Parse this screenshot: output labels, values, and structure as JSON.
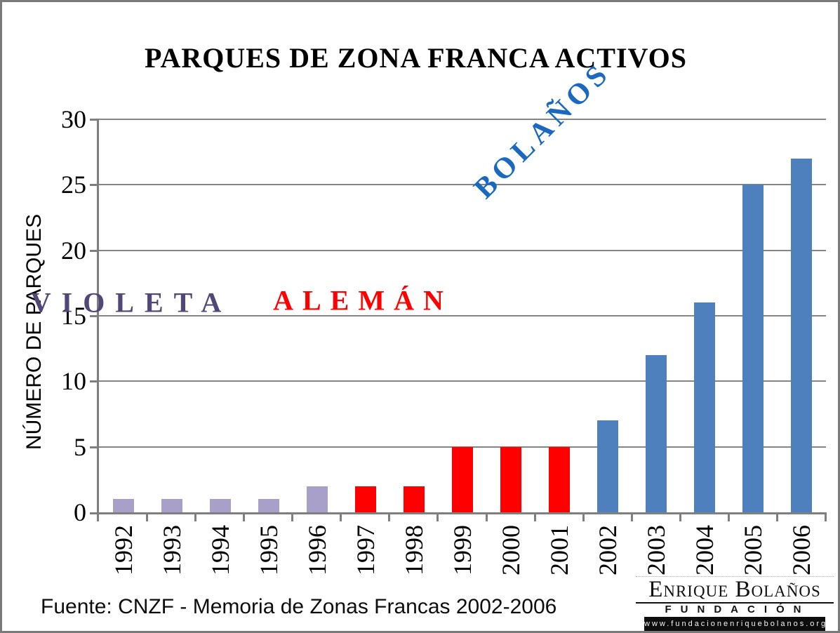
{
  "title": "PARQUES DE ZONA FRANCA ACTIVOS",
  "y_axis_label": "NÚMERO DE PARQUES",
  "source": "Fuente: CNZF - Memoria de Zonas Francas 2002-2006",
  "era_labels": [
    {
      "id": "violeta",
      "text": "VIOLETA",
      "color": "#524878"
    },
    {
      "id": "aleman",
      "text": "ALEMÁN",
      "color": "#FF0000"
    },
    {
      "id": "bolanos",
      "text": "BOLAÑOS",
      "color": "#1B69BE"
    }
  ],
  "logo": {
    "name": "Enrique Bolaños",
    "subtitle": "FUNDACIÓN",
    "url": "www.fundacionenriquebolanos.org"
  },
  "chart_data": {
    "type": "bar",
    "title": "PARQUES DE ZONA FRANCA ACTIVOS",
    "xlabel": "",
    "ylabel": "NÚMERO DE PARQUES",
    "ylim": [
      0,
      30
    ],
    "yticks": [
      0,
      5,
      10,
      15,
      20,
      25,
      30
    ],
    "grid": true,
    "legend_position": "none",
    "categories": [
      "1992",
      "1993",
      "1994",
      "1995",
      "1996",
      "1997",
      "1998",
      "1999",
      "2000",
      "2001",
      "2002",
      "2003",
      "2004",
      "2005",
      "2006"
    ],
    "values": [
      1,
      1,
      1,
      1,
      2,
      2,
      2,
      5,
      5,
      5,
      7,
      12,
      16,
      25,
      27
    ],
    "bar_colors": [
      "#A8A0C8",
      "#A8A0C8",
      "#A8A0C8",
      "#A8A0C8",
      "#A8A0C8",
      "#FF0000",
      "#FF0000",
      "#FF0000",
      "#FF0000",
      "#FF0000",
      "#4D80BC",
      "#4D80BC",
      "#4D80BC",
      "#4D80BC",
      "#4D80BC"
    ],
    "series_groups": [
      {
        "name": "VIOLETA",
        "years": "1992-1996",
        "color": "#A8A0C8",
        "values": [
          1,
          1,
          1,
          1,
          2
        ]
      },
      {
        "name": "ALEMÁN",
        "years": "1997-2001",
        "color": "#FF0000",
        "values": [
          2,
          2,
          5,
          5,
          5
        ]
      },
      {
        "name": "BOLAÑOS",
        "years": "2002-2006",
        "color": "#4D80BC",
        "values": [
          7,
          12,
          16,
          25,
          27
        ]
      }
    ]
  }
}
